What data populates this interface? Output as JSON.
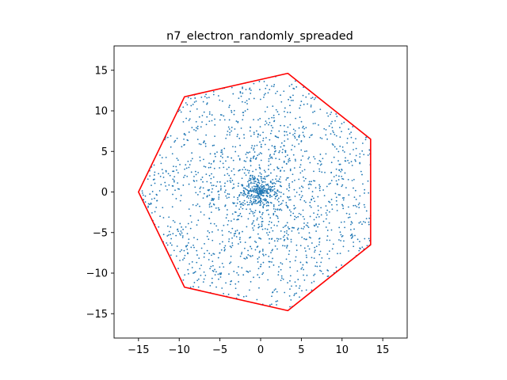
{
  "chart_data": {
    "type": "scatter",
    "title": "n7_electron_randomly_spreaded",
    "xlabel": "",
    "ylabel": "",
    "xlim": [
      -18,
      18
    ],
    "ylim": [
      -18,
      18
    ],
    "xticks": [
      -15,
      -10,
      -5,
      0,
      5,
      10,
      15
    ],
    "yticks": [
      -15,
      -10,
      -5,
      0,
      5,
      10,
      15
    ],
    "xtick_labels": [
      "−15",
      "−10",
      "−5",
      "0",
      "5",
      "10",
      "15"
    ],
    "ytick_labels": [
      "−15",
      "−10",
      "−5",
      "0",
      "5",
      "10",
      "15"
    ],
    "grid": false,
    "colors": {
      "points": "#1f77b4",
      "boundary": "#ff0000"
    },
    "boundary": {
      "name": "",
      "vertices": [
        [
          -15.0,
          0.0
        ],
        [
          -9.35,
          11.73
        ],
        [
          3.34,
          14.62
        ],
        [
          13.51,
          6.51
        ],
        [
          13.51,
          -6.51
        ],
        [
          3.34,
          -14.62
        ],
        [
          -9.35,
          -11.73
        ]
      ]
    },
    "scatter": {
      "name": "",
      "generator": "radially concentrated random points inside a regular heptagon (circumradius 15)",
      "approx_count": 1900
    }
  }
}
